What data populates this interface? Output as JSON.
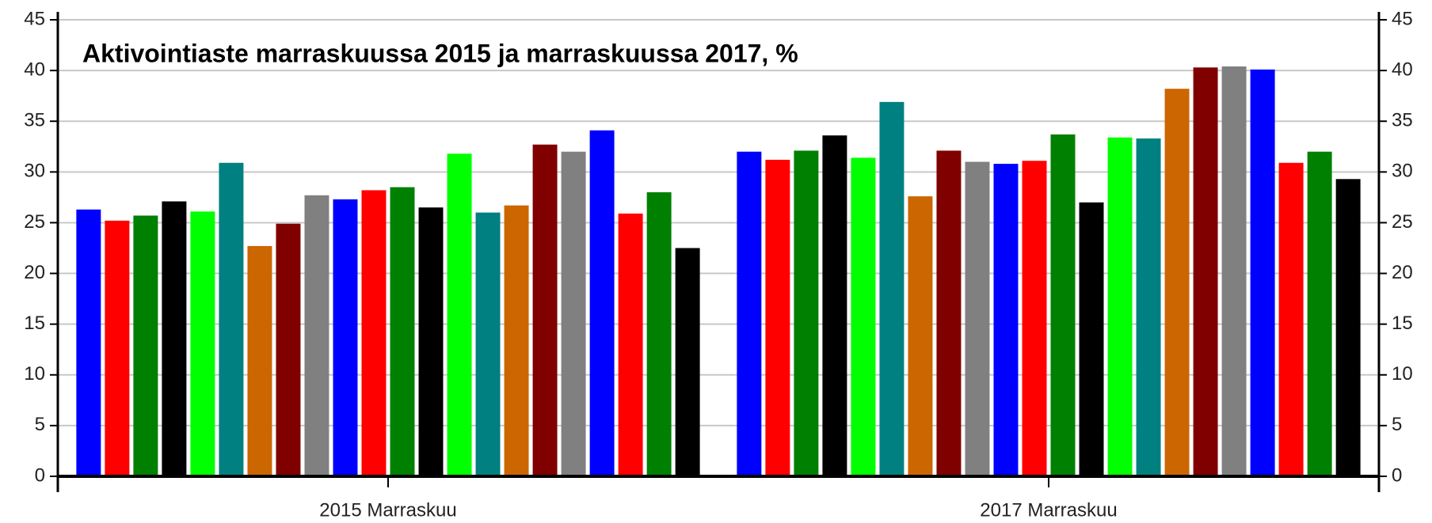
{
  "chart_data": {
    "type": "bar",
    "title": "Aktivointiaste marraskuussa 2015 ja marraskuussa 2017, %",
    "categories": [
      "2015 Marraskuu",
      "2017 Marraskuu"
    ],
    "series": [
      {
        "color": "#0000ff",
        "values": [
          26.3,
          32.0
        ]
      },
      {
        "color": "#ff0000",
        "values": [
          25.2,
          31.2
        ]
      },
      {
        "color": "#008000",
        "values": [
          25.7,
          32.1
        ]
      },
      {
        "color": "#000000",
        "values": [
          27.1,
          33.6
        ]
      },
      {
        "color": "#00ff00",
        "values": [
          26.1,
          31.4
        ]
      },
      {
        "color": "#008080",
        "values": [
          30.9,
          36.9
        ]
      },
      {
        "color": "#cc6600",
        "values": [
          22.7,
          27.6
        ]
      },
      {
        "color": "#800000",
        "values": [
          24.9,
          32.1
        ]
      },
      {
        "color": "#808080",
        "values": [
          27.7,
          31.0
        ]
      },
      {
        "color": "#0000ff",
        "values": [
          27.3,
          30.8
        ]
      },
      {
        "color": "#ff0000",
        "values": [
          28.2,
          31.1
        ]
      },
      {
        "color": "#008000",
        "values": [
          28.5,
          33.7
        ]
      },
      {
        "color": "#000000",
        "values": [
          26.5,
          27.0
        ]
      },
      {
        "color": "#00ff00",
        "values": [
          31.8,
          33.4
        ]
      },
      {
        "color": "#008080",
        "values": [
          26.0,
          33.3
        ]
      },
      {
        "color": "#cc6600",
        "values": [
          26.7,
          38.2
        ]
      },
      {
        "color": "#800000",
        "values": [
          32.7,
          40.3
        ]
      },
      {
        "color": "#808080",
        "values": [
          32.0,
          40.4
        ]
      },
      {
        "color": "#0000ff",
        "values": [
          34.1,
          40.1
        ]
      },
      {
        "color": "#ff0000",
        "values": [
          25.9,
          30.9
        ]
      },
      {
        "color": "#008000",
        "values": [
          28.0,
          32.0
        ]
      },
      {
        "color": "#000000",
        "values": [
          22.5,
          29.3
        ]
      }
    ],
    "ylim": [
      0,
      45
    ],
    "yticks": [
      0,
      5,
      10,
      15,
      20,
      25,
      30,
      35,
      40,
      45
    ],
    "y2lim": [
      0,
      45
    ],
    "y2ticks": [
      0,
      5,
      10,
      15,
      20,
      25,
      30,
      35,
      40,
      45
    ],
    "grid": true
  }
}
